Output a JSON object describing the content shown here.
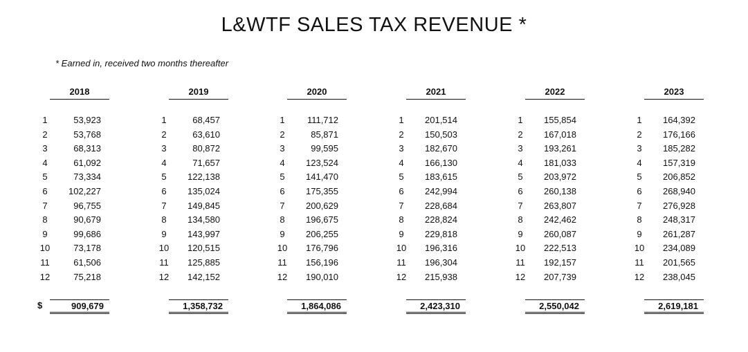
{
  "title": "L&WTF SALES TAX REVENUE *",
  "note": "* Earned in, received two months thereafter",
  "currency_symbol": "$",
  "years": [
    {
      "year": "2018",
      "values": [
        "53,923",
        "53,768",
        "68,313",
        "61,092",
        "73,334",
        "102,227",
        "96,755",
        "90,679",
        "99,686",
        "73,178",
        "61,506",
        "75,218"
      ],
      "total": "909,679"
    },
    {
      "year": "2019",
      "values": [
        "68,457",
        "63,610",
        "80,872",
        "71,657",
        "122,138",
        "135,024",
        "149,845",
        "134,580",
        "143,997",
        "120,515",
        "125,885",
        "142,152"
      ],
      "total": "1,358,732"
    },
    {
      "year": "2020",
      "values": [
        "111,712",
        "85,871",
        "99,595",
        "123,524",
        "141,470",
        "175,355",
        "200,629",
        "196,675",
        "206,255",
        "176,796",
        "156,196",
        "190,010"
      ],
      "total": "1,864,086"
    },
    {
      "year": "2021",
      "values": [
        "201,514",
        "150,503",
        "182,670",
        "166,130",
        "183,615",
        "242,994",
        "228,684",
        "228,824",
        "229,818",
        "196,316",
        "196,304",
        "215,938"
      ],
      "total": "2,423,310"
    },
    {
      "year": "2022",
      "values": [
        "155,854",
        "167,018",
        "193,261",
        "181,033",
        "203,972",
        "260,138",
        "263,807",
        "242,462",
        "260,087",
        "222,513",
        "192,157",
        "207,739"
      ],
      "total": "2,550,042"
    },
    {
      "year": "2023",
      "values": [
        "164,392",
        "176,166",
        "185,282",
        "157,319",
        "206,852",
        "268,940",
        "276,928",
        "248,317",
        "261,287",
        "234,089",
        "201,565",
        "238,045"
      ],
      "total": "2,619,181"
    }
  ],
  "months": [
    "1",
    "2",
    "3",
    "4",
    "5",
    "6",
    "7",
    "8",
    "9",
    "10",
    "11",
    "12"
  ]
}
